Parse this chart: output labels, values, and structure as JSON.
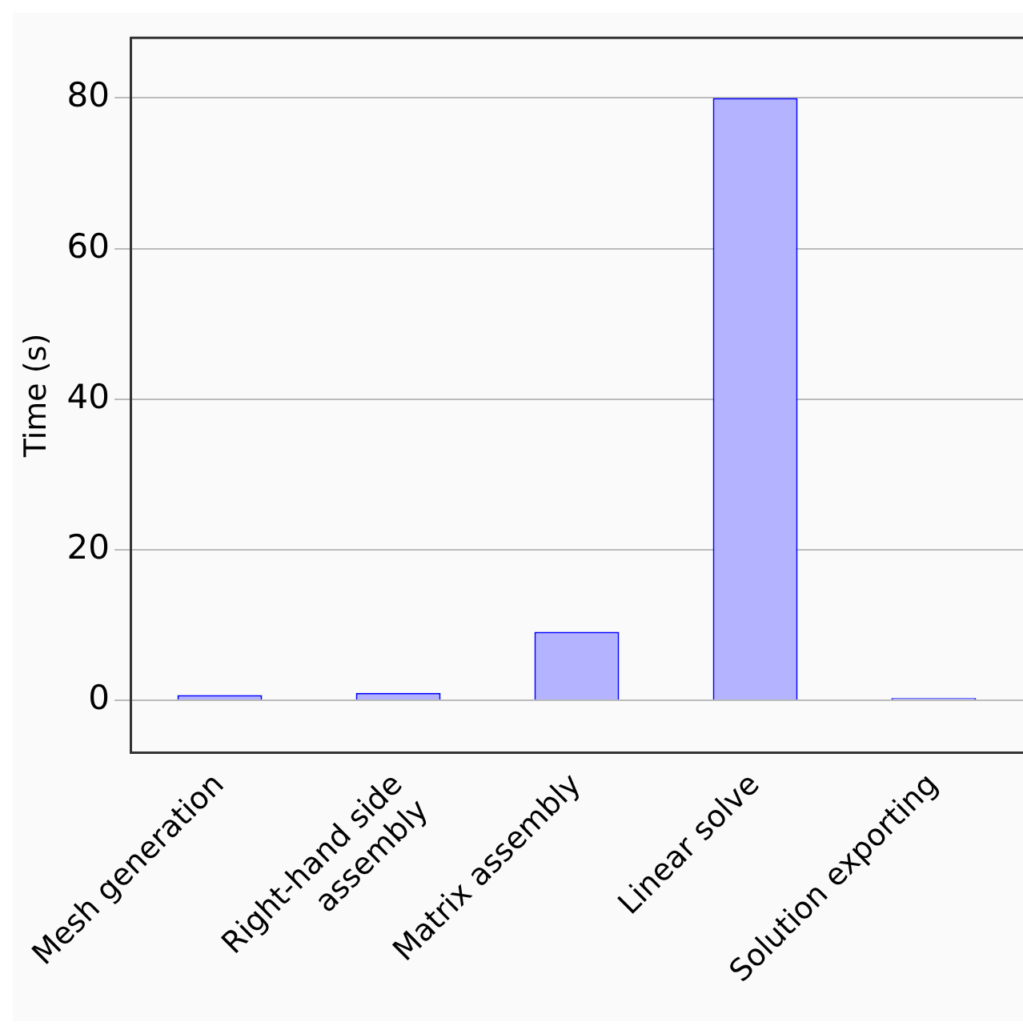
{
  "chart_data": {
    "type": "bar",
    "ylabel": "Time (s)",
    "categories": [
      "Mesh generation",
      "Right-hand side\nassembly",
      "Matrix assembly",
      "Linear solve",
      "Solution exporting"
    ],
    "values": [
      0.7,
      1.0,
      9.1,
      80,
      0.3
    ],
    "color": "#b3b3ff",
    "ylim": [
      -7,
      88
    ],
    "yticks": [
      0,
      20,
      40,
      60,
      80
    ],
    "grid": "y",
    "legend": false
  }
}
